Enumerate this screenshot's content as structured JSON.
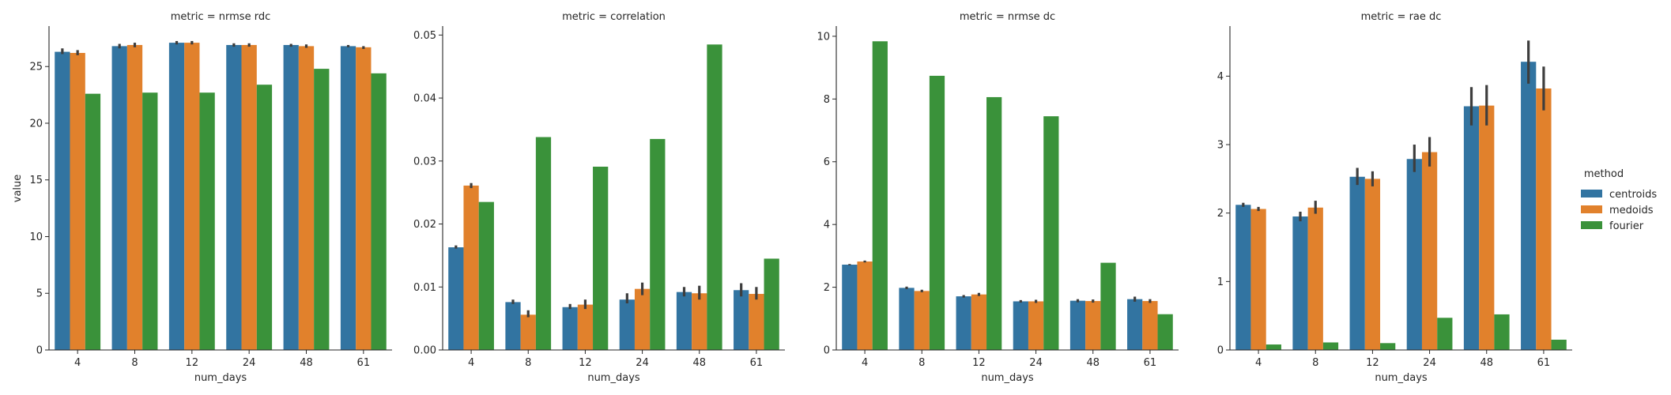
{
  "figure": {
    "legend": {
      "title": "method",
      "entries": [
        {
          "name": "centroids",
          "color": "#3274a1"
        },
        {
          "name": "medoids",
          "color": "#e1812c"
        },
        {
          "name": "fourier",
          "color": "#3a923a"
        }
      ]
    }
  },
  "chart_data": [
    {
      "type": "bar",
      "title": "metric = nrmse rdc",
      "xlabel": "num_days",
      "ylabel": "value",
      "categories": [
        "4",
        "8",
        "12",
        "24",
        "48",
        "61"
      ],
      "ylim": [
        0,
        28.5
      ],
      "yticks": [
        0,
        5,
        10,
        15,
        20,
        25
      ],
      "ytick_labels": [
        "0",
        "5",
        "10",
        "15",
        "20",
        "25"
      ],
      "grid": false,
      "series": [
        {
          "name": "centroids",
          "values": [
            26.3,
            26.8,
            27.1,
            26.9,
            26.9,
            26.8
          ],
          "err_low": [
            26.1,
            26.6,
            26.95,
            26.75,
            26.75,
            26.7
          ],
          "err_high": [
            26.6,
            27.0,
            27.25,
            27.05,
            27.0,
            26.9
          ]
        },
        {
          "name": "medoids",
          "values": [
            26.2,
            26.9,
            27.1,
            26.9,
            26.8,
            26.7
          ],
          "err_low": [
            26.0,
            26.7,
            26.95,
            26.75,
            26.65,
            26.55
          ],
          "err_high": [
            26.45,
            27.1,
            27.25,
            27.05,
            26.95,
            26.8
          ]
        },
        {
          "name": "fourier",
          "values": [
            22.6,
            22.7,
            22.7,
            23.4,
            24.8,
            24.4
          ]
        }
      ]
    },
    {
      "type": "bar",
      "title": "metric = correlation",
      "xlabel": "num_days",
      "ylabel": "",
      "categories": [
        "4",
        "8",
        "12",
        "24",
        "48",
        "61"
      ],
      "ylim": [
        0,
        0.0513
      ],
      "yticks": [
        0,
        0.01,
        0.02,
        0.03,
        0.04,
        0.05
      ],
      "ytick_labels": [
        "0.00",
        "0.01",
        "0.02",
        "0.03",
        "0.04",
        "0.05"
      ],
      "grid": false,
      "series": [
        {
          "name": "centroids",
          "values": [
            0.0163,
            0.0076,
            0.0068,
            0.008,
            0.0092,
            0.0095
          ],
          "err_low": [
            0.0161,
            0.0073,
            0.0065,
            0.0074,
            0.0085,
            0.0085
          ],
          "err_high": [
            0.0166,
            0.008,
            0.0073,
            0.009,
            0.01,
            0.0106
          ]
        },
        {
          "name": "medoids",
          "values": [
            0.0261,
            0.0056,
            0.0072,
            0.0097,
            0.009,
            0.0089
          ],
          "err_low": [
            0.0257,
            0.0052,
            0.0065,
            0.0087,
            0.008,
            0.008
          ],
          "err_high": [
            0.0265,
            0.0063,
            0.008,
            0.0107,
            0.0102,
            0.01
          ]
        },
        {
          "name": "fourier",
          "values": [
            0.0235,
            0.0338,
            0.0291,
            0.0335,
            0.0485,
            0.0145
          ]
        }
      ]
    },
    {
      "type": "bar",
      "title": "metric = nrmse dc",
      "xlabel": "num_days",
      "ylabel": "",
      "categories": [
        "4",
        "8",
        "12",
        "24",
        "48",
        "61"
      ],
      "ylim": [
        0,
        10.3
      ],
      "yticks": [
        0,
        2,
        4,
        6,
        8,
        10
      ],
      "ytick_labels": [
        "0",
        "2",
        "4",
        "6",
        "8",
        "10"
      ],
      "grid": false,
      "series": [
        {
          "name": "centroids",
          "values": [
            2.72,
            1.98,
            1.71,
            1.55,
            1.57,
            1.62
          ],
          "err_low": [
            2.7,
            1.94,
            1.67,
            1.51,
            1.52,
            1.54
          ],
          "err_high": [
            2.74,
            2.02,
            1.75,
            1.59,
            1.62,
            1.7
          ]
        },
        {
          "name": "medoids",
          "values": [
            2.82,
            1.88,
            1.77,
            1.55,
            1.56,
            1.56
          ],
          "err_low": [
            2.79,
            1.84,
            1.72,
            1.5,
            1.51,
            1.5
          ],
          "err_high": [
            2.85,
            1.92,
            1.82,
            1.6,
            1.61,
            1.62
          ]
        },
        {
          "name": "fourier",
          "values": [
            9.84,
            8.74,
            8.06,
            7.45,
            2.78,
            1.14
          ]
        }
      ]
    },
    {
      "type": "bar",
      "title": "metric = rae dc",
      "xlabel": "num_days",
      "ylabel": "",
      "categories": [
        "4",
        "8",
        "12",
        "24",
        "48",
        "61"
      ],
      "ylim": [
        0,
        4.72
      ],
      "yticks": [
        0,
        1,
        2,
        3,
        4
      ],
      "ytick_labels": [
        "0",
        "1",
        "2",
        "3",
        "4"
      ],
      "grid": false,
      "series": [
        {
          "name": "centroids",
          "values": [
            2.12,
            1.95,
            2.53,
            2.79,
            3.56,
            4.21
          ],
          "err_low": [
            2.09,
            1.88,
            2.41,
            2.6,
            3.28,
            3.89
          ],
          "err_high": [
            2.15,
            2.02,
            2.66,
            3.0,
            3.84,
            4.52
          ]
        },
        {
          "name": "medoids",
          "values": [
            2.06,
            2.08,
            2.5,
            2.89,
            3.57,
            3.82
          ],
          "err_low": [
            2.03,
            1.99,
            2.39,
            2.68,
            3.28,
            3.5
          ],
          "err_high": [
            2.09,
            2.18,
            2.61,
            3.11,
            3.87,
            4.14
          ]
        },
        {
          "name": "fourier",
          "values": [
            0.08,
            0.11,
            0.1,
            0.47,
            0.52,
            0.15
          ]
        }
      ]
    }
  ]
}
